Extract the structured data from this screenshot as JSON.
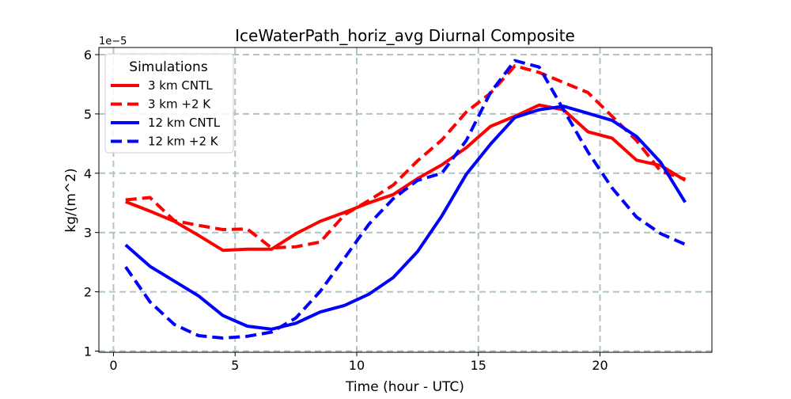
{
  "chart_data": {
    "type": "line",
    "title": "IceWaterPath_horiz_avg Diurnal Composite",
    "xlabel": "Time (hour - UTC)",
    "ylabel": "kg/(m^2)",
    "y_multiplier_label": "1e−5",
    "xlim": [
      -0.6,
      24.6
    ],
    "ylim": [
      0.98,
      6.12
    ],
    "xticks": [
      0,
      5,
      10,
      15,
      20
    ],
    "xtick_labels": [
      "0",
      "5",
      "10",
      "15",
      "20"
    ],
    "yticks": [
      1,
      2,
      3,
      4,
      5,
      6
    ],
    "ytick_labels": [
      "1",
      "2",
      "3",
      "4",
      "5",
      "6"
    ],
    "grid": true,
    "legend": {
      "title": "Simulations",
      "position": "upper-left"
    },
    "x": [
      0.5,
      1.5,
      2.5,
      3.5,
      4.5,
      5.5,
      6.5,
      7.5,
      8.5,
      9.5,
      10.5,
      11.5,
      12.5,
      13.5,
      14.5,
      15.5,
      16.5,
      17.5,
      18.5,
      19.5,
      20.5,
      21.5,
      22.5,
      23.5
    ],
    "series": [
      {
        "name": "3 km CNTL",
        "color": "#ff0000",
        "dash": "solid",
        "values": [
          3.52,
          3.36,
          3.19,
          2.95,
          2.7,
          2.72,
          2.72,
          2.98,
          3.19,
          3.34,
          3.5,
          3.64,
          3.91,
          4.14,
          4.43,
          4.79,
          4.96,
          5.15,
          5.07,
          4.7,
          4.59,
          4.22,
          4.13,
          3.88
        ]
      },
      {
        "name": "3 km +2 K",
        "color": "#ff0000",
        "dash": "dashed",
        "values": [
          3.55,
          3.59,
          3.2,
          3.12,
          3.05,
          3.06,
          2.74,
          2.76,
          2.84,
          3.3,
          3.54,
          3.8,
          4.21,
          4.56,
          5.03,
          5.35,
          5.81,
          5.7,
          5.53,
          5.36,
          4.96,
          4.55,
          4.03,
          3.9
        ]
      },
      {
        "name": "12 km CNTL",
        "color": "#0000ff",
        "dash": "solid",
        "values": [
          2.79,
          2.43,
          2.18,
          1.93,
          1.6,
          1.42,
          1.37,
          1.47,
          1.66,
          1.77,
          1.96,
          2.24,
          2.68,
          3.28,
          3.98,
          4.49,
          4.94,
          5.07,
          5.13,
          5.01,
          4.89,
          4.62,
          4.18,
          3.51
        ]
      },
      {
        "name": "12 km +2 K",
        "color": "#0000ff",
        "dash": "dashed",
        "values": [
          2.42,
          1.83,
          1.45,
          1.26,
          1.22,
          1.25,
          1.32,
          1.56,
          2.01,
          2.57,
          3.14,
          3.57,
          3.88,
          4.0,
          4.55,
          5.36,
          5.9,
          5.79,
          5.07,
          4.36,
          3.75,
          3.26,
          2.98,
          2.8
        ]
      }
    ]
  }
}
